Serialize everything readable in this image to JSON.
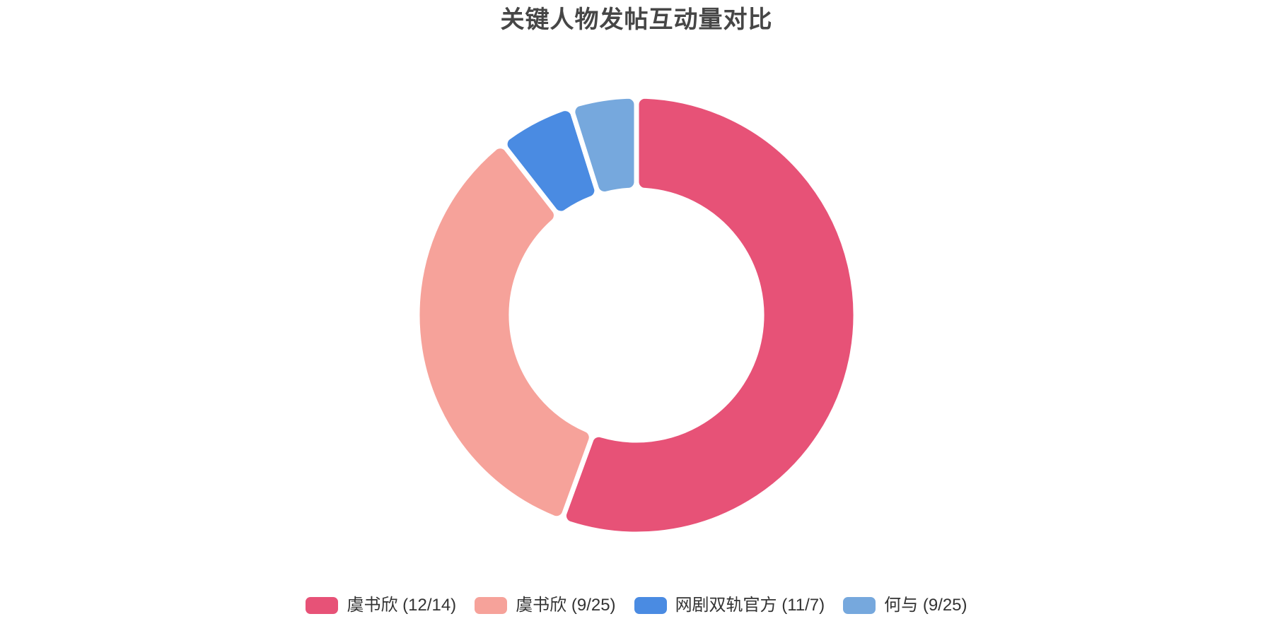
{
  "page": {
    "background_color": "#ffffff"
  },
  "title": {
    "text": "关键人物发帖互动量对比",
    "color": "#464646"
  },
  "chart_data": {
    "type": "pie",
    "subtype": "donut",
    "title": "关键人物发帖互动量对比",
    "legend_position": "bottom",
    "start_angle_deg": 90,
    "clockwise": true,
    "gap_color": "#ffffff",
    "series": [
      {
        "name": "虞书欣 (12/14)",
        "color": "#E75277",
        "sweep_deg": 200.0,
        "share_pct": 55.6
      },
      {
        "name": "虞书欣 (9/25)",
        "color": "#F6A29A",
        "sweep_deg": 122.0,
        "share_pct": 33.9
      },
      {
        "name": "网剧双轨官方 (11/7)",
        "color": "#4A8BE2",
        "sweep_deg": 20.5,
        "share_pct": 5.7
      },
      {
        "name": "何与 (9/25)",
        "color": "#76A8DD",
        "sweep_deg": 17.5,
        "share_pct": 4.9
      }
    ]
  }
}
